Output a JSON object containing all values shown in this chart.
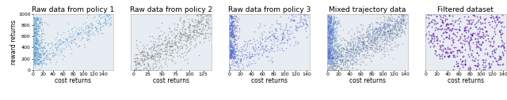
{
  "panels": [
    {
      "title": "Raw data from policy 1",
      "color": "#5599cc",
      "alpha": 0.55,
      "n_points": 800,
      "x_range": [
        0,
        160
      ],
      "y_range": [
        0,
        1000
      ],
      "xticks": [
        0,
        20,
        40,
        60,
        80,
        100,
        120,
        140
      ],
      "pattern": "policy1"
    },
    {
      "title": "Raw data from policy 2",
      "color": "#777777",
      "alpha": 0.55,
      "n_points": 700,
      "x_range": [
        -5,
        140
      ],
      "y_range": [
        0,
        1000
      ],
      "xticks": [
        0,
        25,
        50,
        75,
        100,
        125
      ],
      "pattern": "policy2"
    },
    {
      "title": "Raw data from policy 3",
      "color": "#5566cc",
      "alpha": 0.55,
      "n_points": 800,
      "x_range": [
        0,
        145
      ],
      "y_range": [
        0,
        1000
      ],
      "xticks": [
        0,
        20,
        40,
        60,
        80,
        100,
        120,
        140
      ],
      "pattern": "policy3"
    },
    {
      "title": "Mixed trajectory data",
      "colors": [
        "#5599cc",
        "#777777",
        "#5566cc"
      ],
      "alpha": 0.45,
      "n_points": 700,
      "x_range": [
        0,
        145
      ],
      "y_range": [
        0,
        1000
      ],
      "xticks": [
        0,
        20,
        40,
        60,
        80,
        100,
        120,
        140
      ],
      "pattern": "mixed"
    },
    {
      "title": "Filtered dataset",
      "color": "#550099",
      "alpha": 0.65,
      "n_points": 500,
      "x_range": [
        0,
        145
      ],
      "y_range": [
        0,
        1000
      ],
      "xticks": [
        0,
        20,
        40,
        60,
        80,
        100,
        120,
        140
      ],
      "pattern": "filtered"
    }
  ],
  "xlabel": "cost returns",
  "ylabel": "reward returns",
  "bg_color": "#e8edf3",
  "title_fontsize": 6.5,
  "label_fontsize": 5.5,
  "tick_fontsize": 4.5,
  "point_size": 1.2
}
